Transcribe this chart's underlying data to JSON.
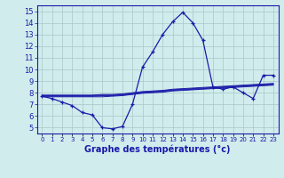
{
  "title": "Graphe des températures (°c)",
  "x_labels": [
    "0",
    "1",
    "2",
    "3",
    "4",
    "5",
    "6",
    "7",
    "8",
    "9",
    "10",
    "11",
    "12",
    "13",
    "14",
    "15",
    "16",
    "17",
    "18",
    "19",
    "20",
    "21",
    "22",
    "23"
  ],
  "hours": [
    0,
    1,
    2,
    3,
    4,
    5,
    6,
    7,
    8,
    9,
    10,
    11,
    12,
    13,
    14,
    15,
    16,
    17,
    18,
    19,
    20,
    21,
    22,
    23
  ],
  "temp_actual": [
    7.7,
    7.5,
    7.2,
    6.9,
    6.3,
    6.1,
    5.0,
    4.9,
    5.1,
    7.0,
    10.2,
    11.5,
    13.0,
    14.1,
    14.9,
    14.0,
    12.5,
    8.5,
    8.3,
    8.5,
    8.0,
    7.5,
    9.5,
    9.5
  ],
  "line1": [
    7.7,
    7.7,
    7.7,
    7.7,
    7.7,
    7.7,
    7.75,
    7.75,
    7.8,
    7.9,
    8.0,
    8.05,
    8.1,
    8.2,
    8.25,
    8.3,
    8.35,
    8.4,
    8.45,
    8.5,
    8.55,
    8.6,
    8.65,
    8.7
  ],
  "line2": [
    7.65,
    7.65,
    7.65,
    7.65,
    7.65,
    7.65,
    7.65,
    7.7,
    7.75,
    7.85,
    7.95,
    8.0,
    8.05,
    8.15,
    8.2,
    8.25,
    8.3,
    8.35,
    8.4,
    8.45,
    8.5,
    8.55,
    8.6,
    8.65
  ],
  "line3": [
    7.75,
    7.75,
    7.75,
    7.75,
    7.75,
    7.75,
    7.8,
    7.8,
    7.85,
    7.95,
    8.05,
    8.1,
    8.15,
    8.25,
    8.3,
    8.35,
    8.4,
    8.45,
    8.5,
    8.55,
    8.6,
    8.65,
    8.7,
    8.75
  ],
  "line4": [
    7.8,
    7.8,
    7.8,
    7.8,
    7.8,
    7.8,
    7.85,
    7.85,
    7.9,
    8.0,
    8.1,
    8.15,
    8.2,
    8.3,
    8.35,
    8.4,
    8.45,
    8.5,
    8.55,
    8.6,
    8.65,
    8.7,
    8.75,
    8.8
  ],
  "yticks": [
    5,
    6,
    7,
    8,
    9,
    10,
    11,
    12,
    13,
    14,
    15
  ],
  "ylim_min": 4.5,
  "ylim_max": 15.5,
  "xlim_min": -0.5,
  "xlim_max": 23.5,
  "bg_color": "#d0ecec",
  "grid_color": "#a8c8c8",
  "line_color": "#1a1aaa",
  "label_fontsize": 7,
  "tick_fontsize_y": 6,
  "tick_fontsize_x": 5
}
